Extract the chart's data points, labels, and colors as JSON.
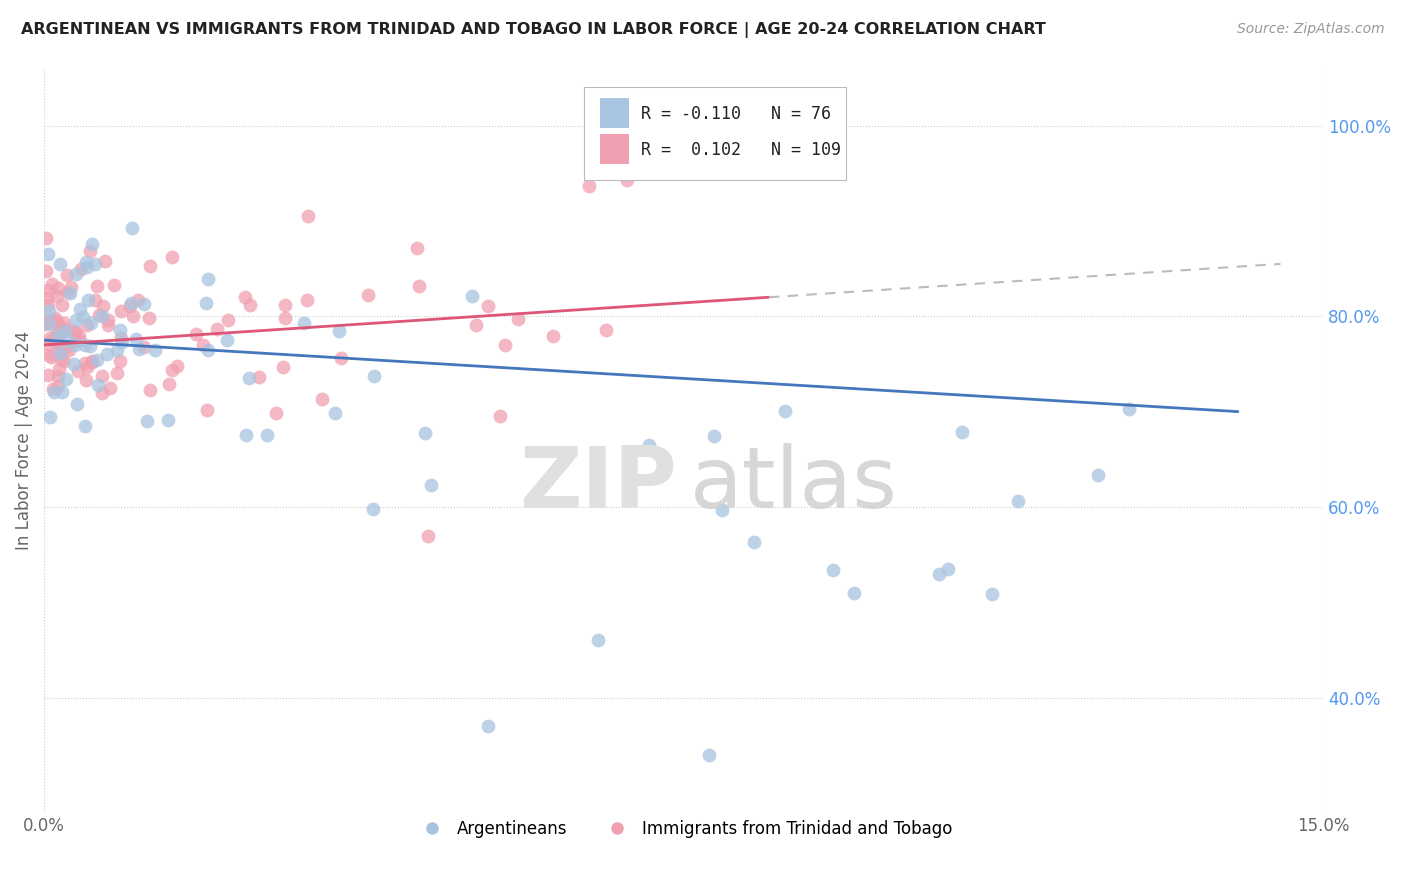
{
  "title": "ARGENTINEAN VS IMMIGRANTS FROM TRINIDAD AND TOBAGO IN LABOR FORCE | AGE 20-24 CORRELATION CHART",
  "source": "Source: ZipAtlas.com",
  "ylabel": "In Labor Force | Age 20-24",
  "xlim": [
    0.0,
    15.0
  ],
  "ylim": [
    28.0,
    106.0
  ],
  "blue_R": -0.11,
  "blue_N": 76,
  "pink_R": 0.102,
  "pink_N": 109,
  "blue_color": "#a8c4e0",
  "pink_color": "#f0a0b0",
  "blue_line_color": "#4477bb",
  "pink_line_color": "#dd5577",
  "pink_line_dashed_color": "#cccccc",
  "watermark_zip": "ZIP",
  "watermark_atlas": "atlas",
  "legend_label_blue": "Argentineans",
  "legend_label_pink": "Immigrants from Trinidad and Tobago",
  "yticks": [
    40.0,
    60.0,
    80.0,
    100.0
  ],
  "blue_trend_x": [
    0.0,
    14.0
  ],
  "blue_trend_y": [
    77.5,
    70.0
  ],
  "pink_trend_x": [
    0.0,
    8.5
  ],
  "pink_trend_y": [
    77.0,
    82.0
  ]
}
